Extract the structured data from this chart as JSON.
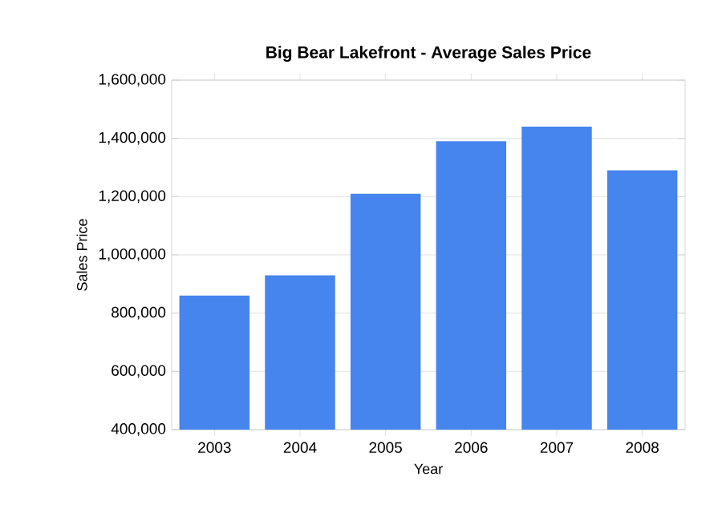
{
  "chart_data": {
    "type": "bar",
    "title": "Big Bear Lakefront - Average Sales Price",
    "xlabel": "Year",
    "ylabel": "Sales Price",
    "categories": [
      "2003",
      "2004",
      "2005",
      "2006",
      "2007",
      "2008"
    ],
    "values": [
      860000,
      930000,
      1210000,
      1390000,
      1440000,
      1290000
    ],
    "color": "#4684ee",
    "ylim": [
      400000,
      1600000
    ],
    "yticks": [
      {
        "value": 400000,
        "label": "400,000"
      },
      {
        "value": 600000,
        "label": "600,000"
      },
      {
        "value": 800000,
        "label": "800,000"
      },
      {
        "value": 1000000,
        "label": "1,000,000"
      },
      {
        "value": 1200000,
        "label": "1,200,000"
      },
      {
        "value": 1400000,
        "label": "1,400,000"
      },
      {
        "value": 1600000,
        "label": "1,600,000"
      }
    ],
    "grid": "y"
  }
}
